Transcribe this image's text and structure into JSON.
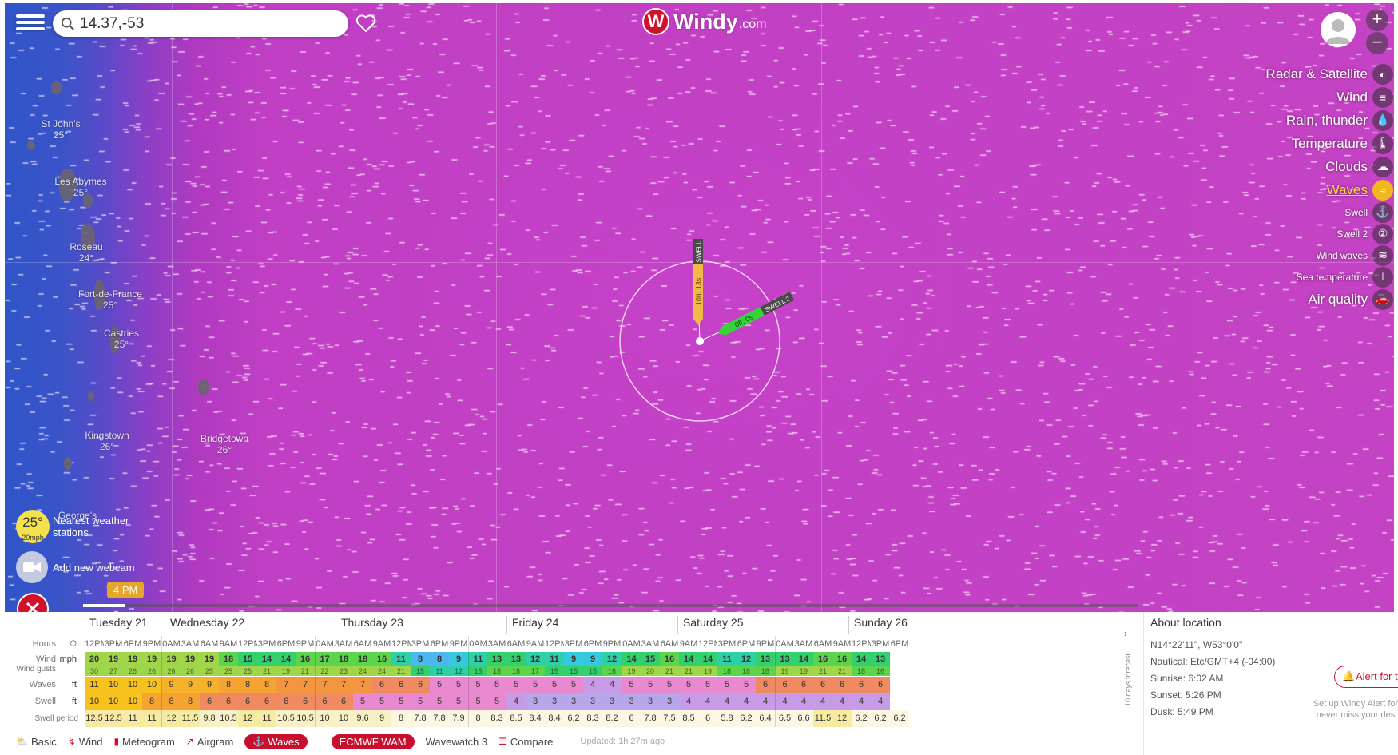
{
  "search": {
    "value": "14.37,-53"
  },
  "brand": {
    "name": "Windy",
    "domain": ".com"
  },
  "layers": [
    {
      "label": "Radar & Satellite",
      "icon": "radar-icon",
      "glyph": "◐",
      "size": "large",
      "active": false
    },
    {
      "label": "Wind",
      "icon": "wind-icon",
      "glyph": "≡",
      "size": "large",
      "active": false
    },
    {
      "label": "Rain, thunder",
      "icon": "rain-icon",
      "glyph": "💧",
      "size": "large",
      "active": false
    },
    {
      "label": "Temperature",
      "icon": "thermometer-icon",
      "glyph": "🌡",
      "size": "large",
      "active": false
    },
    {
      "label": "Clouds",
      "icon": "cloud-icon",
      "glyph": "☁",
      "size": "large",
      "active": false
    },
    {
      "label": "Waves",
      "icon": "waves-icon",
      "glyph": "≈",
      "size": "large",
      "active": true
    },
    {
      "label": "Swell",
      "icon": "swell-icon",
      "glyph": "⚓",
      "size": "small",
      "active": false
    },
    {
      "label": "Swell 2",
      "icon": "swell2-icon",
      "glyph": "②",
      "size": "small",
      "active": false
    },
    {
      "label": "Wind waves",
      "icon": "wind-waves-icon",
      "glyph": "≋",
      "size": "small",
      "active": false
    },
    {
      "label": "Sea temperature",
      "icon": "sea-temperature-icon",
      "glyph": "⊥",
      "size": "small",
      "active": false
    },
    {
      "label": "Air quality",
      "icon": "car-icon",
      "glyph": "🚗",
      "size": "large",
      "active": false
    }
  ],
  "cities": [
    {
      "name": "St John's",
      "temp": "25°"
    },
    {
      "name": "Les Abymes",
      "temp": "25°"
    },
    {
      "name": "Roseau",
      "temp": "24°"
    },
    {
      "name": "Fort-de-France",
      "temp": "25°"
    },
    {
      "name": "Castries",
      "temp": "25°"
    },
    {
      "name": "Kingstown",
      "temp": "26°"
    },
    {
      "name": "Bridgetown",
      "temp": "26°"
    },
    {
      "name": "George's",
      "temp": ""
    }
  ],
  "picker": {
    "swell1_label": "SWELL",
    "swell1_value": "10ft, 13s",
    "swell2_label": "SWELL 2",
    "swell2_value": "0ft, 0s"
  },
  "nearest": {
    "temp": "25°",
    "wind": "20mph",
    "label_line1": "Nearest weather",
    "label_line2": "stations"
  },
  "webcam": {
    "label": "Add new webcam"
  },
  "time_bubble": "4 PM",
  "days": [
    "Tuesday 21",
    "Wednesday 22",
    "Thursday 23",
    "Friday 24",
    "Saturday 25",
    "Sunday 26"
  ],
  "row_labels": {
    "hours": "Hours",
    "wind": "Wind",
    "wind_gusts": "Wind gusts",
    "wind_unit": "mph",
    "waves": "Waves",
    "waves_unit": "ft",
    "swell": "Swell",
    "swell_unit": "ft",
    "swell_period": "Swell period"
  },
  "forecast": {
    "hours": [
      "12PM",
      "3PM",
      "6PM",
      "9PM",
      "0AM",
      "3AM",
      "6AM",
      "9AM",
      "12PM",
      "3PM",
      "6PM",
      "9PM",
      "0AM",
      "3AM",
      "6AM",
      "9AM",
      "12PM",
      "3PM",
      "6PM",
      "9PM",
      "0AM",
      "3AM",
      "6AM",
      "9AM",
      "12PM",
      "3PM",
      "6PM",
      "9PM",
      "0AM",
      "3AM",
      "6AM",
      "9AM",
      "12PM",
      "3PM",
      "6PM",
      "9PM",
      "0AM",
      "3AM",
      "6AM",
      "9AM",
      "12PM",
      "3PM",
      "6PM"
    ],
    "wind": [
      "20",
      "19",
      "19",
      "19",
      "19",
      "19",
      "19",
      "18",
      "15",
      "14",
      "14",
      "16",
      "17",
      "18",
      "18",
      "16",
      "11",
      "8",
      "8",
      "9",
      "11",
      "13",
      "13",
      "12",
      "11",
      "9",
      "9",
      "12",
      "14",
      "15",
      "16",
      "14",
      "14",
      "11",
      "12",
      "13",
      "13",
      "14",
      "16",
      "16",
      "14",
      "13",
      ""
    ],
    "wind_gusts": [
      "30",
      "27",
      "26",
      "26",
      "26",
      "26",
      "25",
      "25",
      "25",
      "21",
      "19",
      "21",
      "22",
      "23",
      "24",
      "24",
      "21",
      "15",
      "11",
      "12",
      "15",
      "18",
      "18",
      "17",
      "15",
      "15",
      "15",
      "16",
      "19",
      "20",
      "21",
      "21",
      "19",
      "18",
      "18",
      "18",
      "19",
      "19",
      "21",
      "21",
      "18",
      "16",
      ""
    ],
    "waves": [
      "11",
      "10",
      "10",
      "10",
      "9",
      "9",
      "9",
      "8",
      "8",
      "8",
      "7",
      "7",
      "7",
      "7",
      "7",
      "6",
      "6",
      "6",
      "5",
      "5",
      "5",
      "5",
      "5",
      "5",
      "5",
      "5",
      "4",
      "4",
      "5",
      "5",
      "5",
      "5",
      "5",
      "5",
      "5",
      "6",
      "6",
      "6",
      "6",
      "6",
      "6",
      "6",
      ""
    ],
    "swell": [
      "10",
      "10",
      "10",
      "8",
      "8",
      "8",
      "6",
      "6",
      "6",
      "6",
      "6",
      "6",
      "6",
      "6",
      "5",
      "5",
      "5",
      "5",
      "5",
      "5",
      "5",
      "5",
      "4",
      "3",
      "3",
      "3",
      "3",
      "3",
      "3",
      "3",
      "3",
      "4",
      "4",
      "4",
      "4",
      "4",
      "4",
      "4",
      "4",
      "4",
      "4",
      "4",
      ""
    ],
    "swell_period": [
      "12.5",
      "12.5",
      "11",
      "11",
      "12",
      "11.5",
      "9.8",
      "10.5",
      "12",
      "11",
      "10.5",
      "10.5",
      "10",
      "10",
      "9.6",
      "9",
      "8",
      "7.8",
      "7.8",
      "7.9",
      "8",
      "8.3",
      "8.5",
      "8.4",
      "8.4",
      "6.2",
      "8.3",
      "8.2",
      "6",
      "7.8",
      "7.5",
      "8.5",
      "6",
      "5.8",
      "6.2",
      "6.4",
      "6.5",
      "6.6",
      "11.5",
      "12",
      "6.2",
      "6.2",
      "6.2"
    ]
  },
  "side_label": "10 days forecast",
  "about": {
    "title": "About location",
    "coords": "N14°22'11\", W53°0'0\"",
    "nautical": "Nautical: Etc/GMT+4 (-04:00)",
    "sunrise": "Sunrise: 6:02 AM",
    "sunset": "Sunset: 5:26 PM",
    "dusk": "Dusk: 5:49 PM",
    "alert_button": "Alert for t",
    "alert_desc": "Set up Windy Alert for never miss your des"
  },
  "tabs": [
    {
      "label": "Basic",
      "icon": "basic-icon",
      "glyph": "⛅",
      "active": false
    },
    {
      "label": "Wind",
      "icon": "wind-icon",
      "glyph": "↯",
      "active": false
    },
    {
      "label": "Meteogram",
      "icon": "meteogram-icon",
      "glyph": "▮",
      "active": false
    },
    {
      "label": "Airgram",
      "icon": "airgram-icon",
      "glyph": "↗",
      "active": false
    },
    {
      "label": "Waves",
      "icon": "waves-icon",
      "glyph": "⚓",
      "active": true
    }
  ],
  "models": [
    {
      "label": "ECMWF WAM",
      "active": true
    },
    {
      "label": "Wavewatch 3",
      "active": false
    }
  ],
  "compare": {
    "label": "Compare",
    "icon": "compare-icon"
  },
  "updated": "Updated: 1h 27m ago",
  "colors": {
    "brand_red": "#d0112b",
    "waves_active": "#f1b71e",
    "map_purple": "#c442c4",
    "map_blue": "#2f55c8"
  }
}
